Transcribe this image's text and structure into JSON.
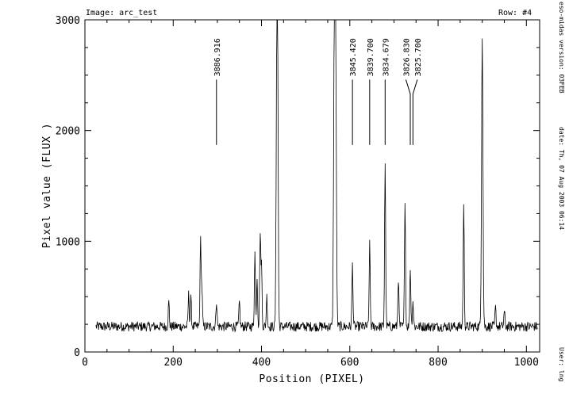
{
  "header": {
    "image_label": "Image: arc_test",
    "row_label": "Row: #4"
  },
  "side_info": {
    "version": "eso-midas version: 03FEB",
    "date": "date: Th, 07 Aug 2003 06:14",
    "user": "User: lng"
  },
  "chart_data": {
    "type": "line",
    "title": "",
    "xlabel": "Position (PIXEL)",
    "ylabel": "Pixel value (FLUX )",
    "xlim": [
      0,
      1030
    ],
    "ylim": [
      0,
      3000
    ],
    "xticks": [
      0,
      200,
      400,
      600,
      800,
      1000
    ],
    "yticks": [
      0,
      1000,
      2000,
      3000
    ],
    "x_range_data": [
      25,
      1025
    ],
    "baseline": 230,
    "noise_amplitude": 45,
    "peaks": [
      {
        "x": 190,
        "y": 450
      },
      {
        "x": 235,
        "y": 520
      },
      {
        "x": 240,
        "y": 480
      },
      {
        "x": 262,
        "y": 1010
      },
      {
        "x": 265,
        "y": 560
      },
      {
        "x": 298,
        "y": 470
      },
      {
        "x": 350,
        "y": 450
      },
      {
        "x": 385,
        "y": 900
      },
      {
        "x": 390,
        "y": 680
      },
      {
        "x": 397,
        "y": 1050
      },
      {
        "x": 400,
        "y": 780
      },
      {
        "x": 412,
        "y": 500
      },
      {
        "x": 435,
        "y": 3000
      },
      {
        "x": 437,
        "y": 1400
      },
      {
        "x": 565,
        "y": 3000
      },
      {
        "x": 568,
        "y": 2600
      },
      {
        "x": 606,
        "y": 790
      },
      {
        "x": 645,
        "y": 970
      },
      {
        "x": 680,
        "y": 1710
      },
      {
        "x": 710,
        "y": 670
      },
      {
        "x": 725,
        "y": 1390
      },
      {
        "x": 737,
        "y": 750
      },
      {
        "x": 743,
        "y": 460
      },
      {
        "x": 858,
        "y": 1320
      },
      {
        "x": 900,
        "y": 2860
      },
      {
        "x": 930,
        "y": 400
      },
      {
        "x": 950,
        "y": 360
      }
    ],
    "line_ids": [
      {
        "label": "3886.916",
        "x": 298,
        "y_bottom": 1870,
        "y_top": 2460
      },
      {
        "label": "3845.420",
        "x": 606,
        "y_bottom": 1870,
        "y_top": 2460
      },
      {
        "label": "3839.700",
        "x": 645,
        "y_bottom": 1870,
        "y_top": 2460
      },
      {
        "label": "3834.679",
        "x": 680,
        "y_bottom": 1870,
        "y_top": 2460
      },
      {
        "label": "3826.830",
        "x": 737,
        "y_bottom": 1870,
        "y_top": 2460,
        "x_top": 727
      },
      {
        "label": "3825.700",
        "x": 743,
        "y_bottom": 1870,
        "y_top": 2460,
        "x_top": 753
      }
    ]
  }
}
